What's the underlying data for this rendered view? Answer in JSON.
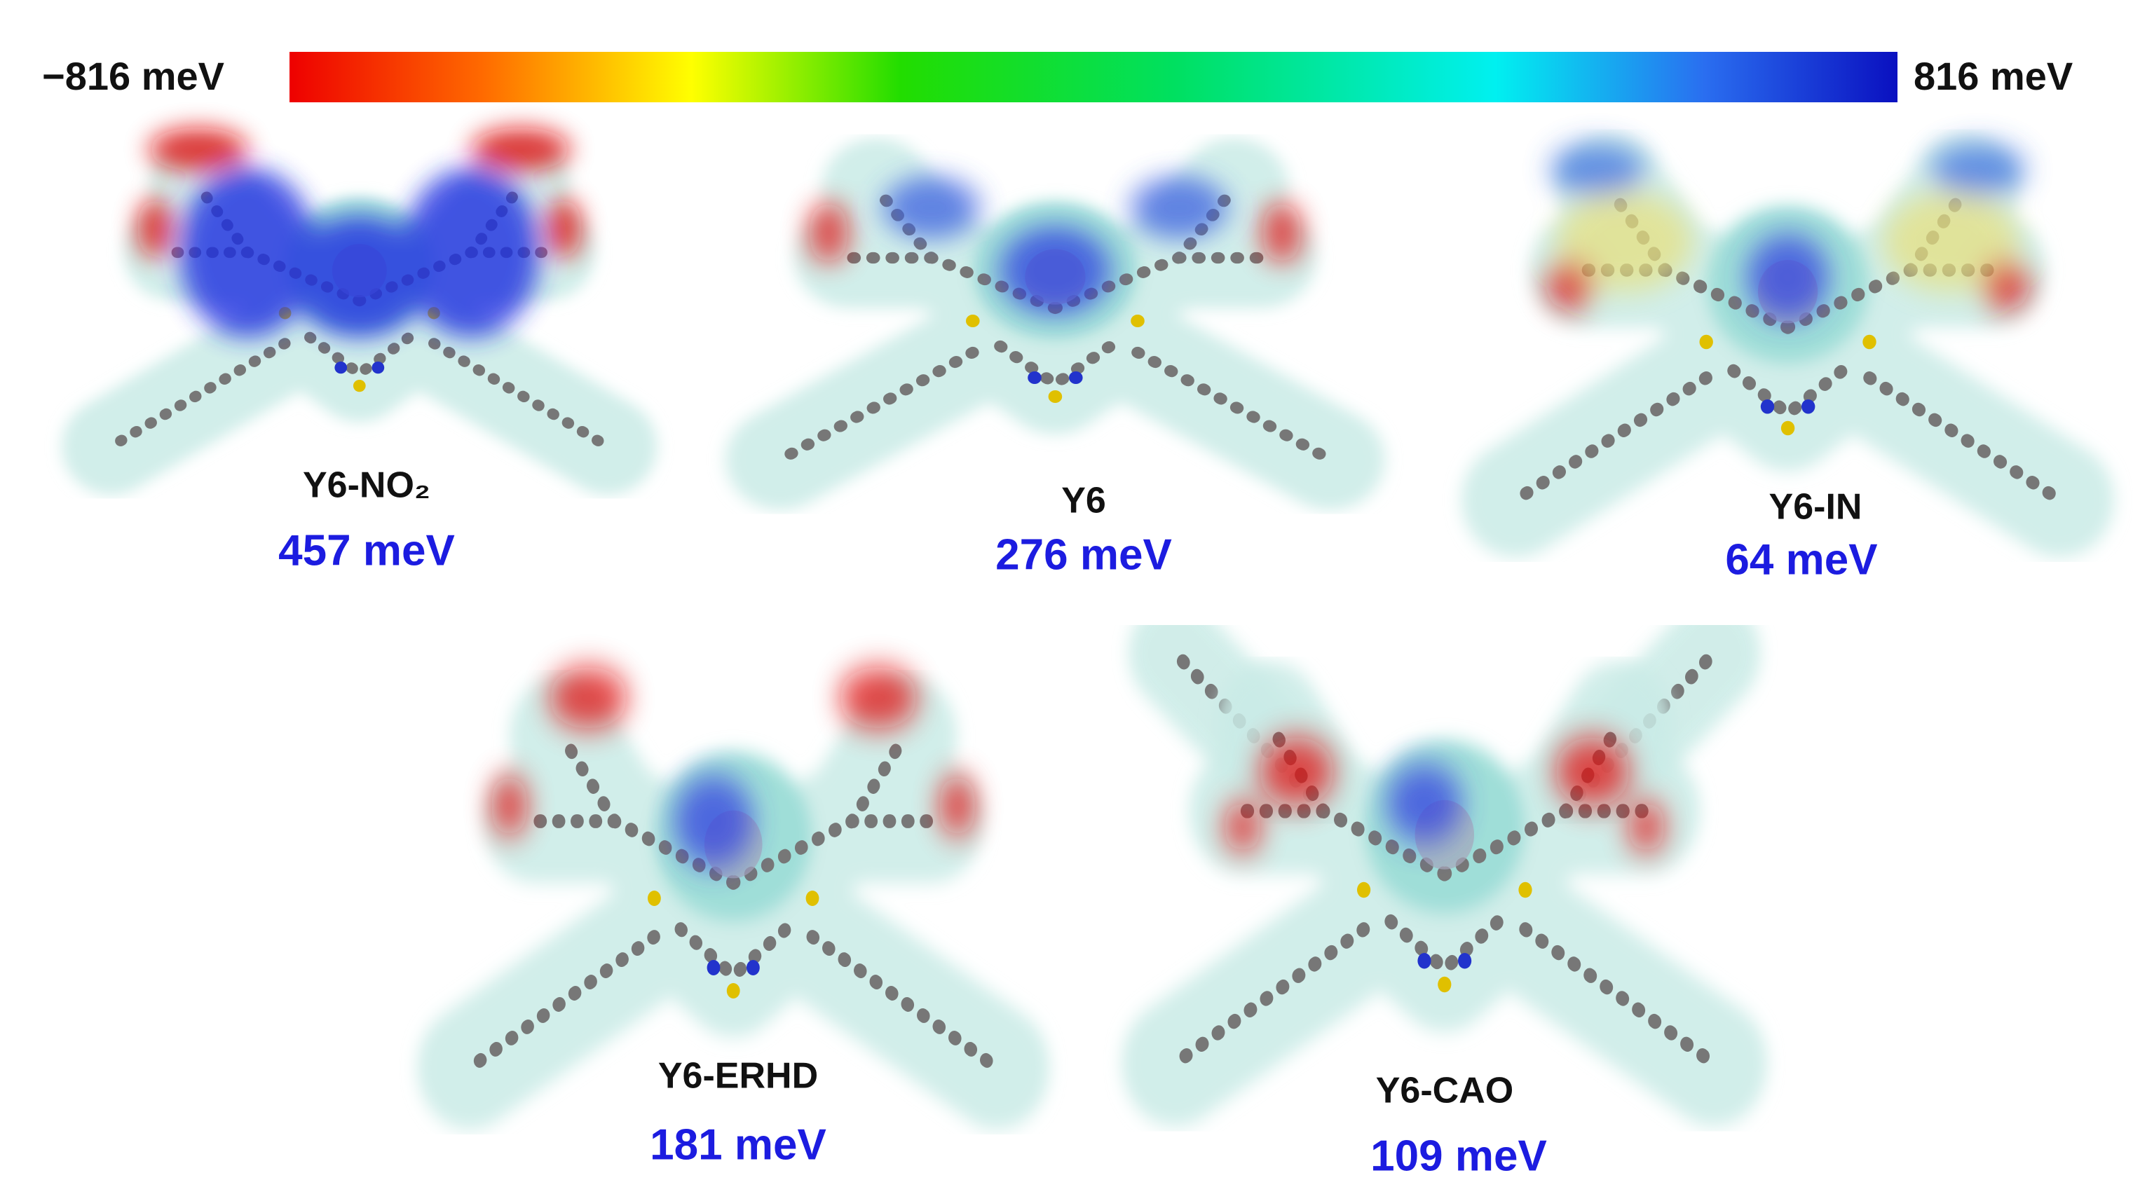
{
  "colorbar": {
    "min_label": "−816 meV",
    "max_label": "816 meV"
  },
  "molecules": [
    {
      "name": "Y6-NO₂",
      "value": "457 meV"
    },
    {
      "name": "Y6",
      "value": "276 meV"
    },
    {
      "name": "Y6-IN",
      "value": "64 meV"
    },
    {
      "name": "Y6-ERHD",
      "value": "181 meV"
    },
    {
      "name": "Y6-CAO",
      "value": "109 meV"
    }
  ]
}
